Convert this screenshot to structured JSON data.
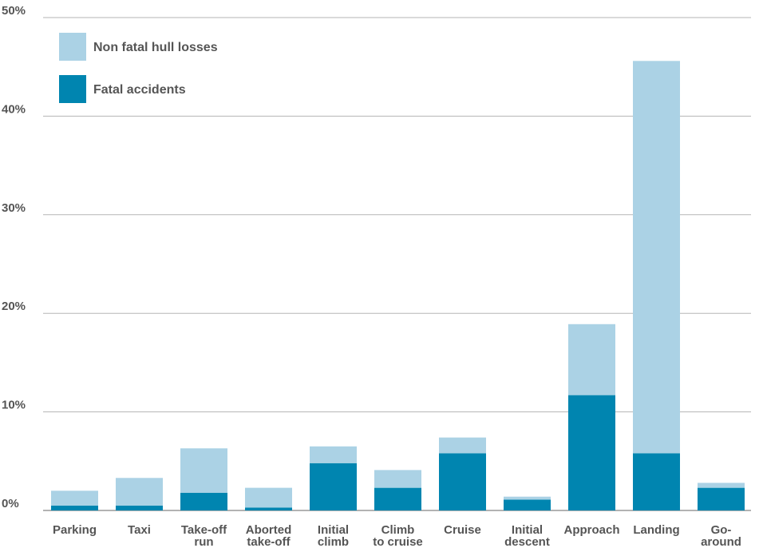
{
  "chart_data": {
    "type": "bar",
    "stacked": true,
    "categories": [
      "Parking",
      "Taxi",
      "Take-off run",
      "Aborted take-off",
      "Initial climb",
      "Climb to cruise",
      "Cruise",
      "Initial descent",
      "Approach",
      "Landing",
      "Go-around"
    ],
    "category_label_lines": [
      [
        "Parking"
      ],
      [
        "Taxi"
      ],
      [
        "Take-off",
        "run"
      ],
      [
        "Aborted",
        "take-off"
      ],
      [
        "Initial",
        "climb"
      ],
      [
        "Climb",
        "to cruise"
      ],
      [
        "Cruise"
      ],
      [
        "Initial",
        "descent"
      ],
      [
        "Approach"
      ],
      [
        "Landing"
      ],
      [
        "Go-",
        "around"
      ]
    ],
    "series": [
      {
        "name": "Fatal accidents",
        "color": "#0085b0",
        "values": [
          0.5,
          0.5,
          1.8,
          0.3,
          4.8,
          2.3,
          5.8,
          1.1,
          11.7,
          5.8,
          2.3
        ]
      },
      {
        "name": "Non fatal hull losses",
        "color": "#abd2e5",
        "values": [
          1.5,
          2.8,
          4.5,
          2.0,
          1.7,
          1.8,
          1.6,
          0.3,
          7.2,
          39.8,
          0.5
        ]
      }
    ],
    "legend_order": [
      "Non fatal hull losses",
      "Fatal accidents"
    ],
    "legend_position": "top-left",
    "yticks": [
      0,
      10,
      20,
      30,
      40,
      50
    ],
    "ytick_labels": [
      "0%",
      "10%",
      "20%",
      "30%",
      "40%",
      "50%"
    ],
    "ylim": [
      0,
      50
    ],
    "grid": true,
    "title": "",
    "xlabel": "",
    "ylabel": ""
  }
}
